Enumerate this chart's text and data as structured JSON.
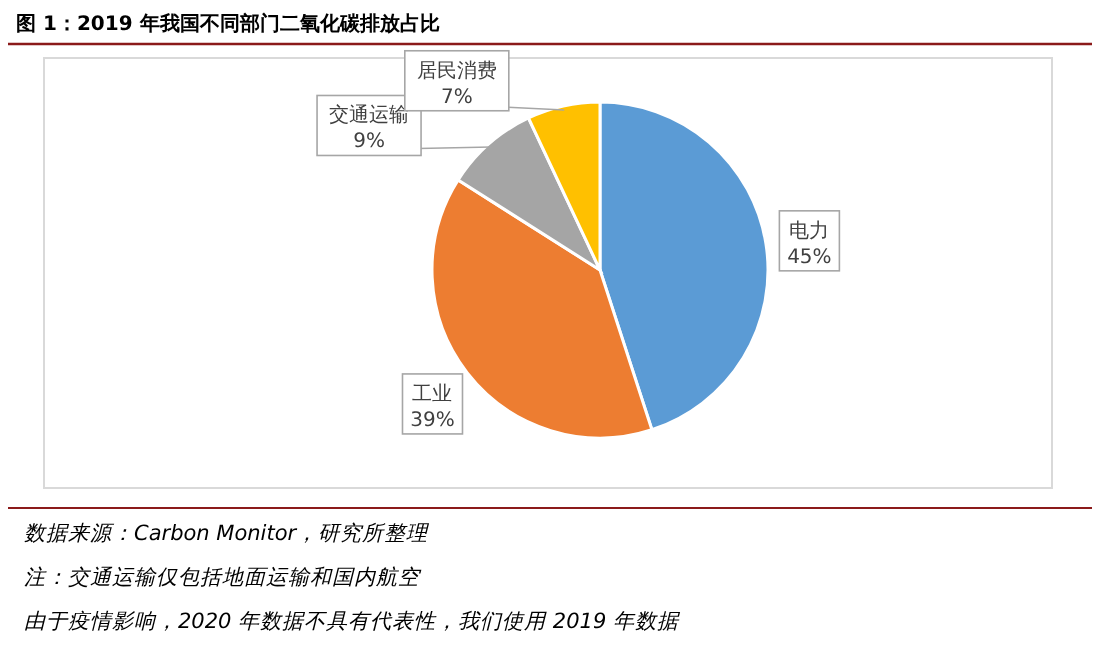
{
  "chart_data": {
    "type": "pie",
    "title": "图 1：2019 年我国不同部门二氧化碳排放占比",
    "categories": [
      "电力",
      "工业",
      "交通运输",
      "居民消费"
    ],
    "values": [
      45,
      39,
      9,
      7
    ],
    "colors": [
      "#5b9bd5",
      "#ed7d31",
      "#a5a5a5",
      "#ffc000"
    ],
    "value_labels": [
      "45%",
      "39%",
      "9%",
      "7%"
    ],
    "annotations": [
      "数据来源：Carbon Monitor，研究所整理",
      "注：交通运输仅包括地面运输和国内航空",
      "由于疫情影响，2020 年数据不具有代表性，我们使用 2019 年数据"
    ]
  }
}
